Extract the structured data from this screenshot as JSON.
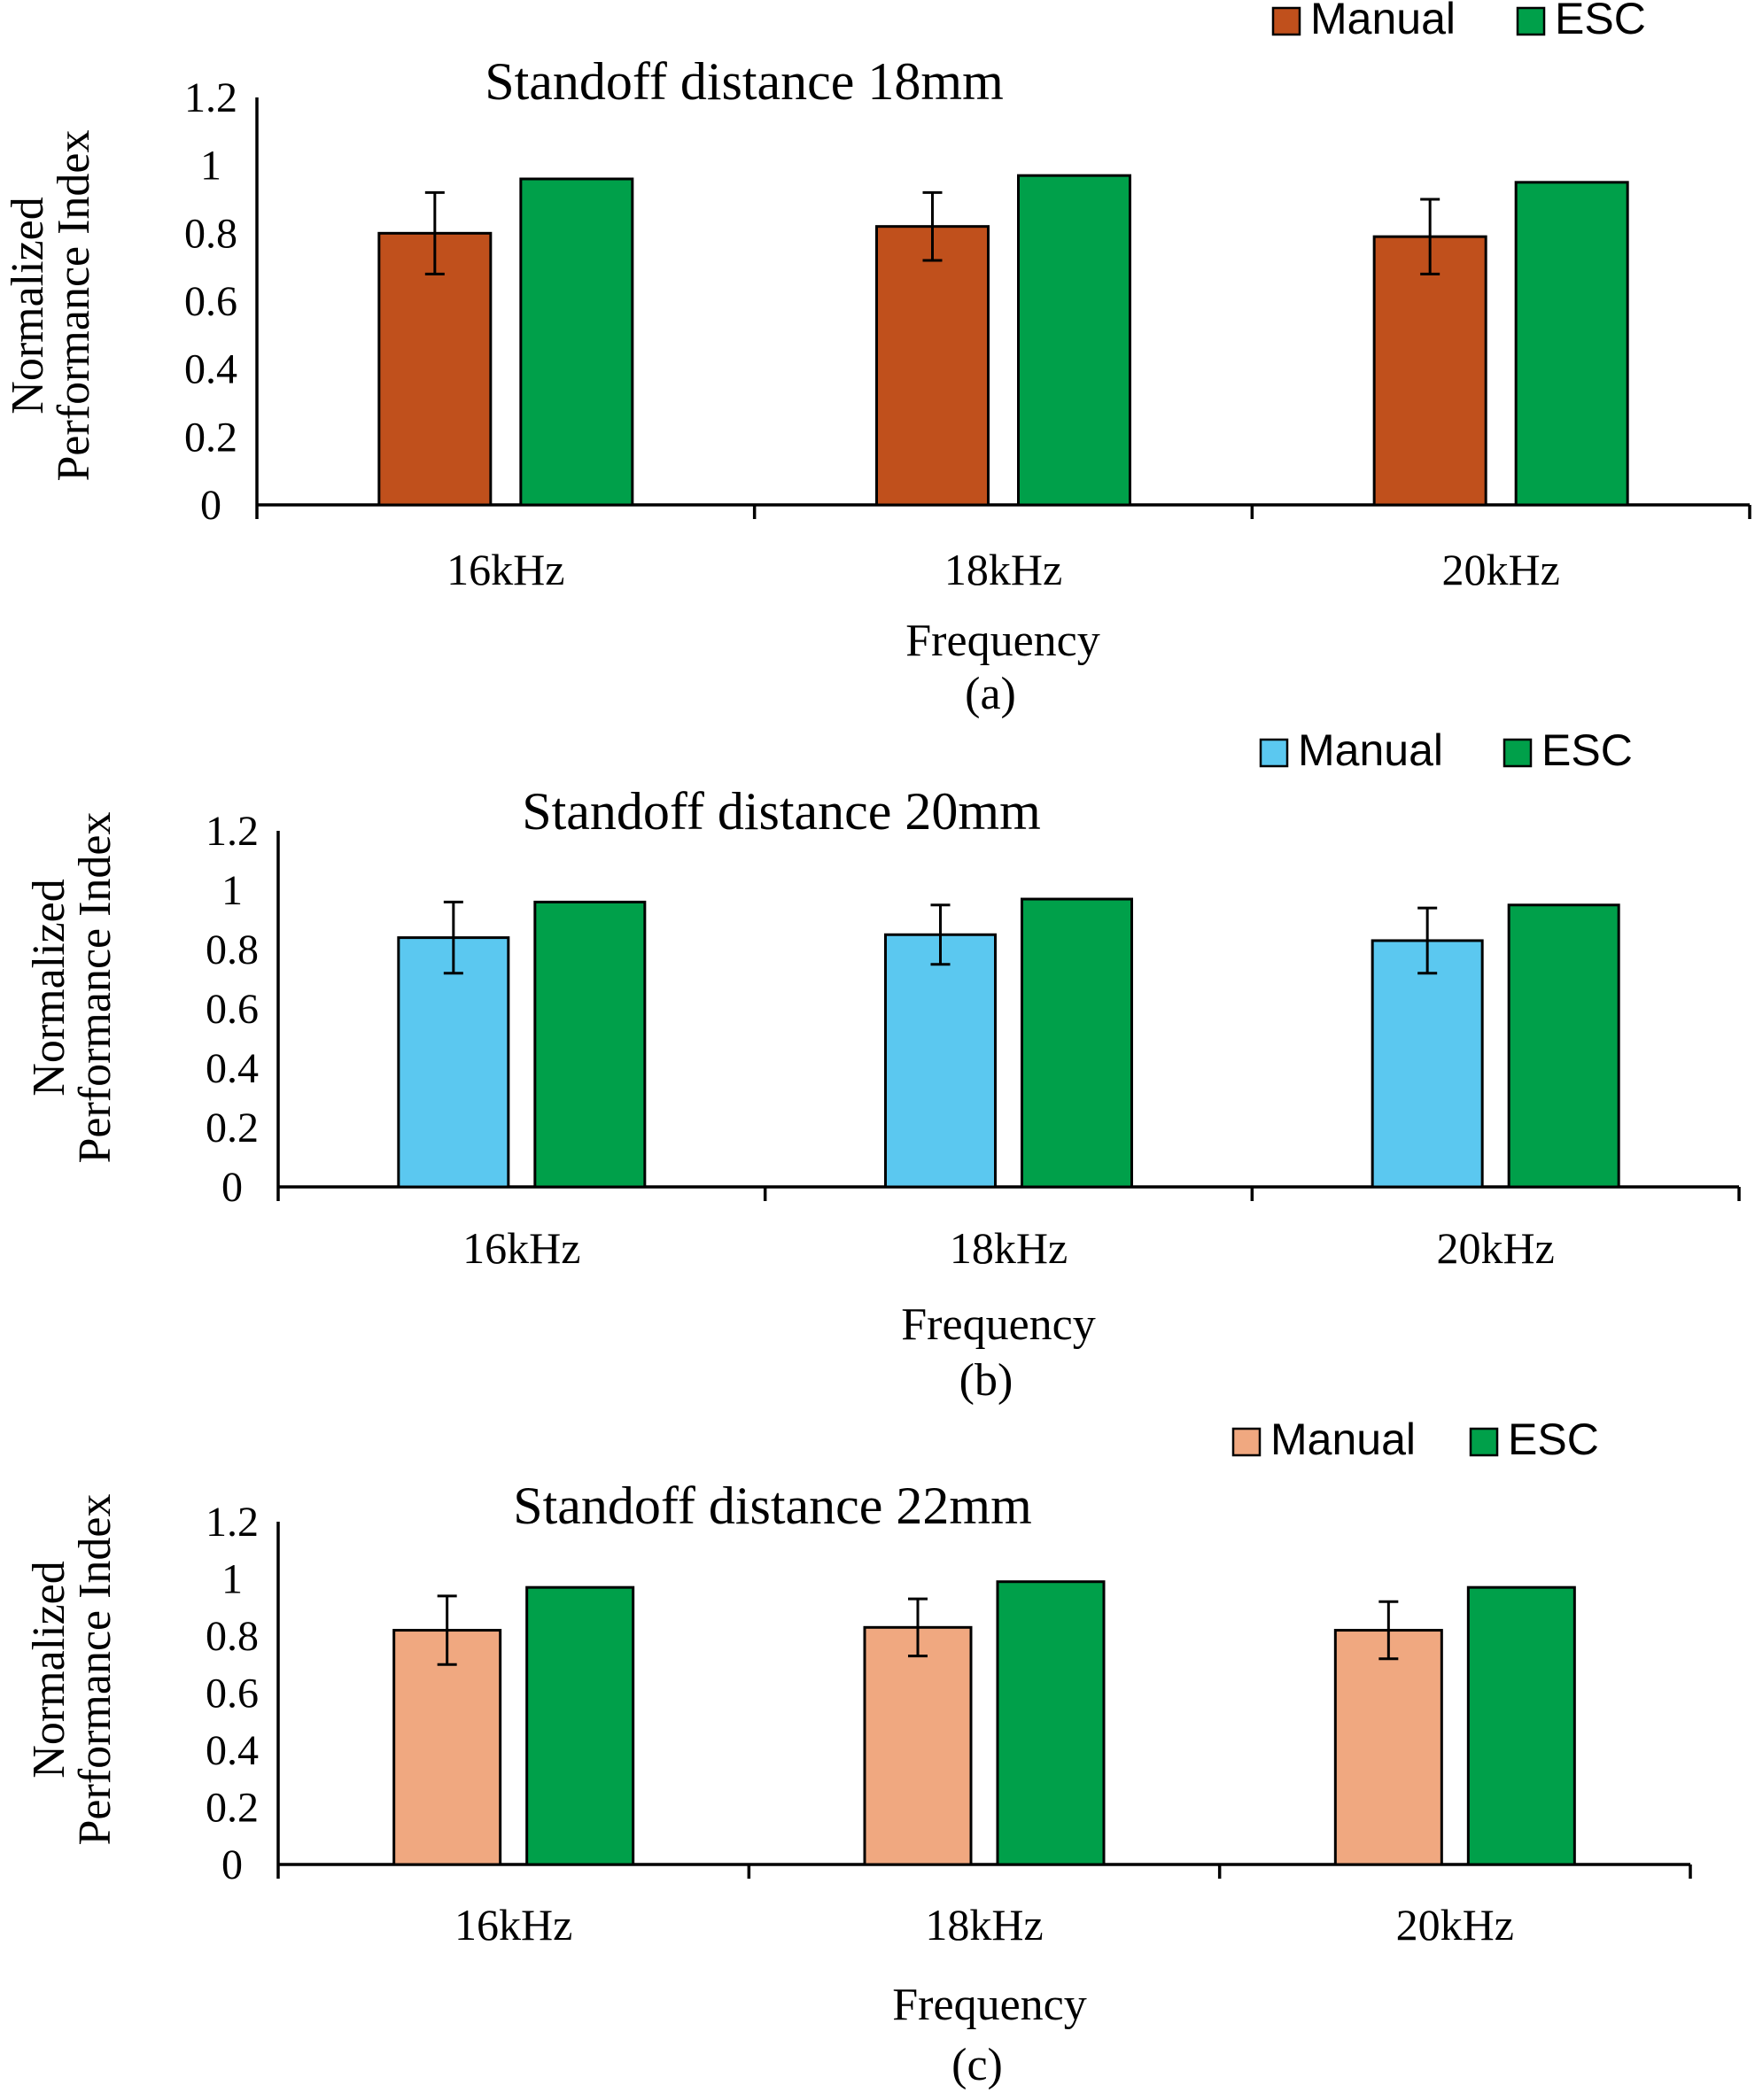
{
  "chart_data": [
    {
      "type": "bar",
      "title": "Standoff distance 18mm",
      "xlabel": "Frequency",
      "ylabel": [
        "Normalized",
        "Performance Index"
      ],
      "caption": "(a)",
      "categories": [
        "16kHz",
        "18kHz",
        "20kHz"
      ],
      "ylim": [
        0,
        1.2
      ],
      "yticks": [
        "0",
        "0.2",
        "0.4",
        "0.6",
        "0.8",
        "1",
        "1.2"
      ],
      "legend_position": "top-right",
      "series": [
        {
          "name": "Manual",
          "color": "#C0501C",
          "values": [
            0.8,
            0.82,
            0.79
          ],
          "error": [
            0.12,
            0.1,
            0.11
          ]
        },
        {
          "name": "ESC",
          "color": "#00A04A",
          "values": [
            0.96,
            0.97,
            0.95
          ]
        }
      ]
    },
    {
      "type": "bar",
      "title": "Standoff distance 20mm",
      "xlabel": "Frequency",
      "ylabel": [
        "Normalized",
        "Performance Index"
      ],
      "caption": "(b)",
      "categories": [
        "16kHz",
        "18kHz",
        "20kHz"
      ],
      "ylim": [
        0,
        1.2
      ],
      "yticks": [
        "0",
        "0.2",
        "0.4",
        "0.6",
        "0.8",
        "1",
        "1.2"
      ],
      "legend_position": "top-right",
      "series": [
        {
          "name": "Manual",
          "color": "#5BC8F0",
          "values": [
            0.84,
            0.85,
            0.83
          ],
          "error": [
            0.12,
            0.1,
            0.11
          ]
        },
        {
          "name": "ESC",
          "color": "#00A04A",
          "values": [
            0.96,
            0.97,
            0.95
          ]
        }
      ]
    },
    {
      "type": "bar",
      "title": "Standoff distance 22mm",
      "xlabel": "Frequency",
      "ylabel": [
        "Normalized",
        "Performance Index"
      ],
      "caption": "(c)",
      "categories": [
        "16kHz",
        "18kHz",
        "20kHz"
      ],
      "ylim": [
        0,
        1.2
      ],
      "yticks": [
        "0",
        "0.2",
        "0.4",
        "0.6",
        "0.8",
        "1",
        "1.2"
      ],
      "legend_position": "top-right",
      "series": [
        {
          "name": "Manual",
          "color": "#F0A880",
          "values": [
            0.82,
            0.83,
            0.82
          ],
          "error": [
            0.12,
            0.1,
            0.1
          ]
        },
        {
          "name": "ESC",
          "color": "#00A04A",
          "values": [
            0.97,
            0.99,
            0.97
          ]
        }
      ]
    }
  ]
}
